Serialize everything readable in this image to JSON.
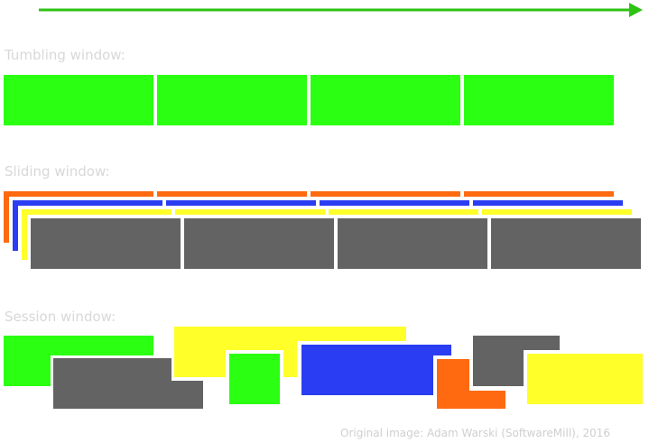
{
  "sections": {
    "tumbling_label": "Tumbling window:",
    "sliding_label": "Sliding window:",
    "session_label": "Session window:"
  },
  "caption": "Original image: Adam Warski (SoftwareMill), 2016",
  "colors": {
    "green": "#2bff12",
    "orange": "#ff6a10",
    "blue": "#2b3df2",
    "yellow": "#ffff2a",
    "gray": "#636363",
    "arrow": "#2ec214",
    "label": "#d8d8d8"
  }
}
